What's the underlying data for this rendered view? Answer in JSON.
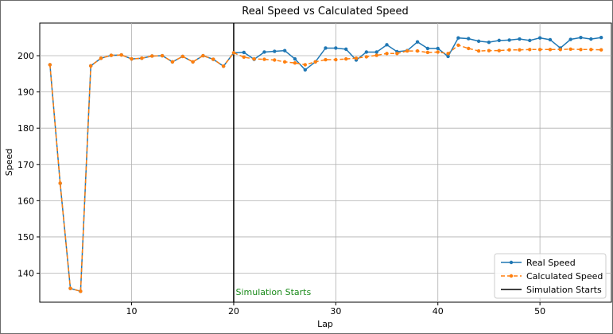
{
  "chart_data": {
    "type": "line",
    "title": "Real Speed vs Calculated Speed",
    "xlabel": "Lap",
    "ylabel": "Speed",
    "xlim": [
      1,
      57
    ],
    "ylim": [
      132,
      209
    ],
    "xticks": [
      10,
      20,
      30,
      40,
      50
    ],
    "yticks": [
      140,
      150,
      160,
      170,
      180,
      190,
      200
    ],
    "grid": true,
    "legend_position": "bottom-right",
    "series": [
      {
        "name": "Real Speed",
        "color": "#1f77b4",
        "style": "solid",
        "marker": "circle",
        "x": [
          2,
          3,
          4,
          5,
          6,
          7,
          8,
          9,
          10,
          11,
          12,
          13,
          14,
          15,
          16,
          17,
          18,
          19,
          20,
          21,
          22,
          23,
          24,
          25,
          26,
          27,
          28,
          29,
          30,
          31,
          32,
          33,
          34,
          35,
          36,
          37,
          38,
          39,
          40,
          41,
          42,
          43,
          44,
          45,
          46,
          47,
          48,
          49,
          50,
          51,
          52,
          53,
          54,
          55,
          56
        ],
        "values": [
          197.5,
          164.8,
          135.8,
          135.0,
          197.2,
          199.3,
          200.1,
          200.2,
          199.1,
          199.3,
          199.9,
          200.0,
          198.3,
          199.8,
          198.3,
          200.0,
          199.0,
          197.1,
          200.8,
          200.9,
          199.0,
          201.0,
          201.2,
          201.4,
          199.1,
          196.1,
          198.3,
          202.1,
          202.1,
          201.8,
          198.8,
          201.0,
          201.0,
          203.0,
          201.1,
          201.4,
          203.8,
          202.0,
          202.0,
          199.8,
          204.9,
          204.7,
          204.0,
          203.7,
          204.2,
          204.3,
          204.6,
          204.2,
          204.9,
          204.4,
          202.1,
          204.5,
          205.0,
          204.6,
          205.0
        ]
      },
      {
        "name": "Calculated Speed",
        "color": "#ff7f0e",
        "style": "dashed",
        "marker": "circle",
        "x": [
          2,
          3,
          4,
          5,
          6,
          7,
          8,
          9,
          10,
          11,
          12,
          13,
          14,
          15,
          16,
          17,
          18,
          19,
          20,
          21,
          22,
          23,
          24,
          25,
          26,
          27,
          28,
          29,
          30,
          31,
          32,
          33,
          34,
          35,
          36,
          37,
          38,
          39,
          40,
          41,
          42,
          43,
          44,
          45,
          46,
          47,
          48,
          49,
          50,
          51,
          52,
          53,
          54,
          55,
          56
        ],
        "values": [
          197.5,
          164.8,
          135.8,
          135.0,
          197.2,
          199.3,
          200.1,
          200.2,
          199.1,
          199.3,
          199.9,
          200.0,
          198.3,
          199.8,
          198.3,
          200.0,
          199.0,
          197.1,
          200.8,
          199.6,
          199.1,
          199.0,
          198.8,
          198.3,
          198.0,
          197.5,
          198.3,
          198.9,
          198.9,
          199.1,
          199.3,
          199.7,
          200.1,
          200.6,
          200.6,
          201.3,
          201.3,
          200.9,
          201.0,
          200.6,
          202.9,
          202.0,
          201.3,
          201.4,
          201.4,
          201.6,
          201.6,
          201.7,
          201.7,
          201.7,
          201.7,
          201.8,
          201.7,
          201.7,
          201.6
        ]
      }
    ],
    "vlines": [
      {
        "name": "Simulation Starts",
        "x": 20,
        "color": "#000000"
      }
    ],
    "annotations": [
      {
        "text": "Simulation Starts",
        "x": 20.2,
        "y": 134,
        "color": "#1a8a1a"
      }
    ]
  }
}
